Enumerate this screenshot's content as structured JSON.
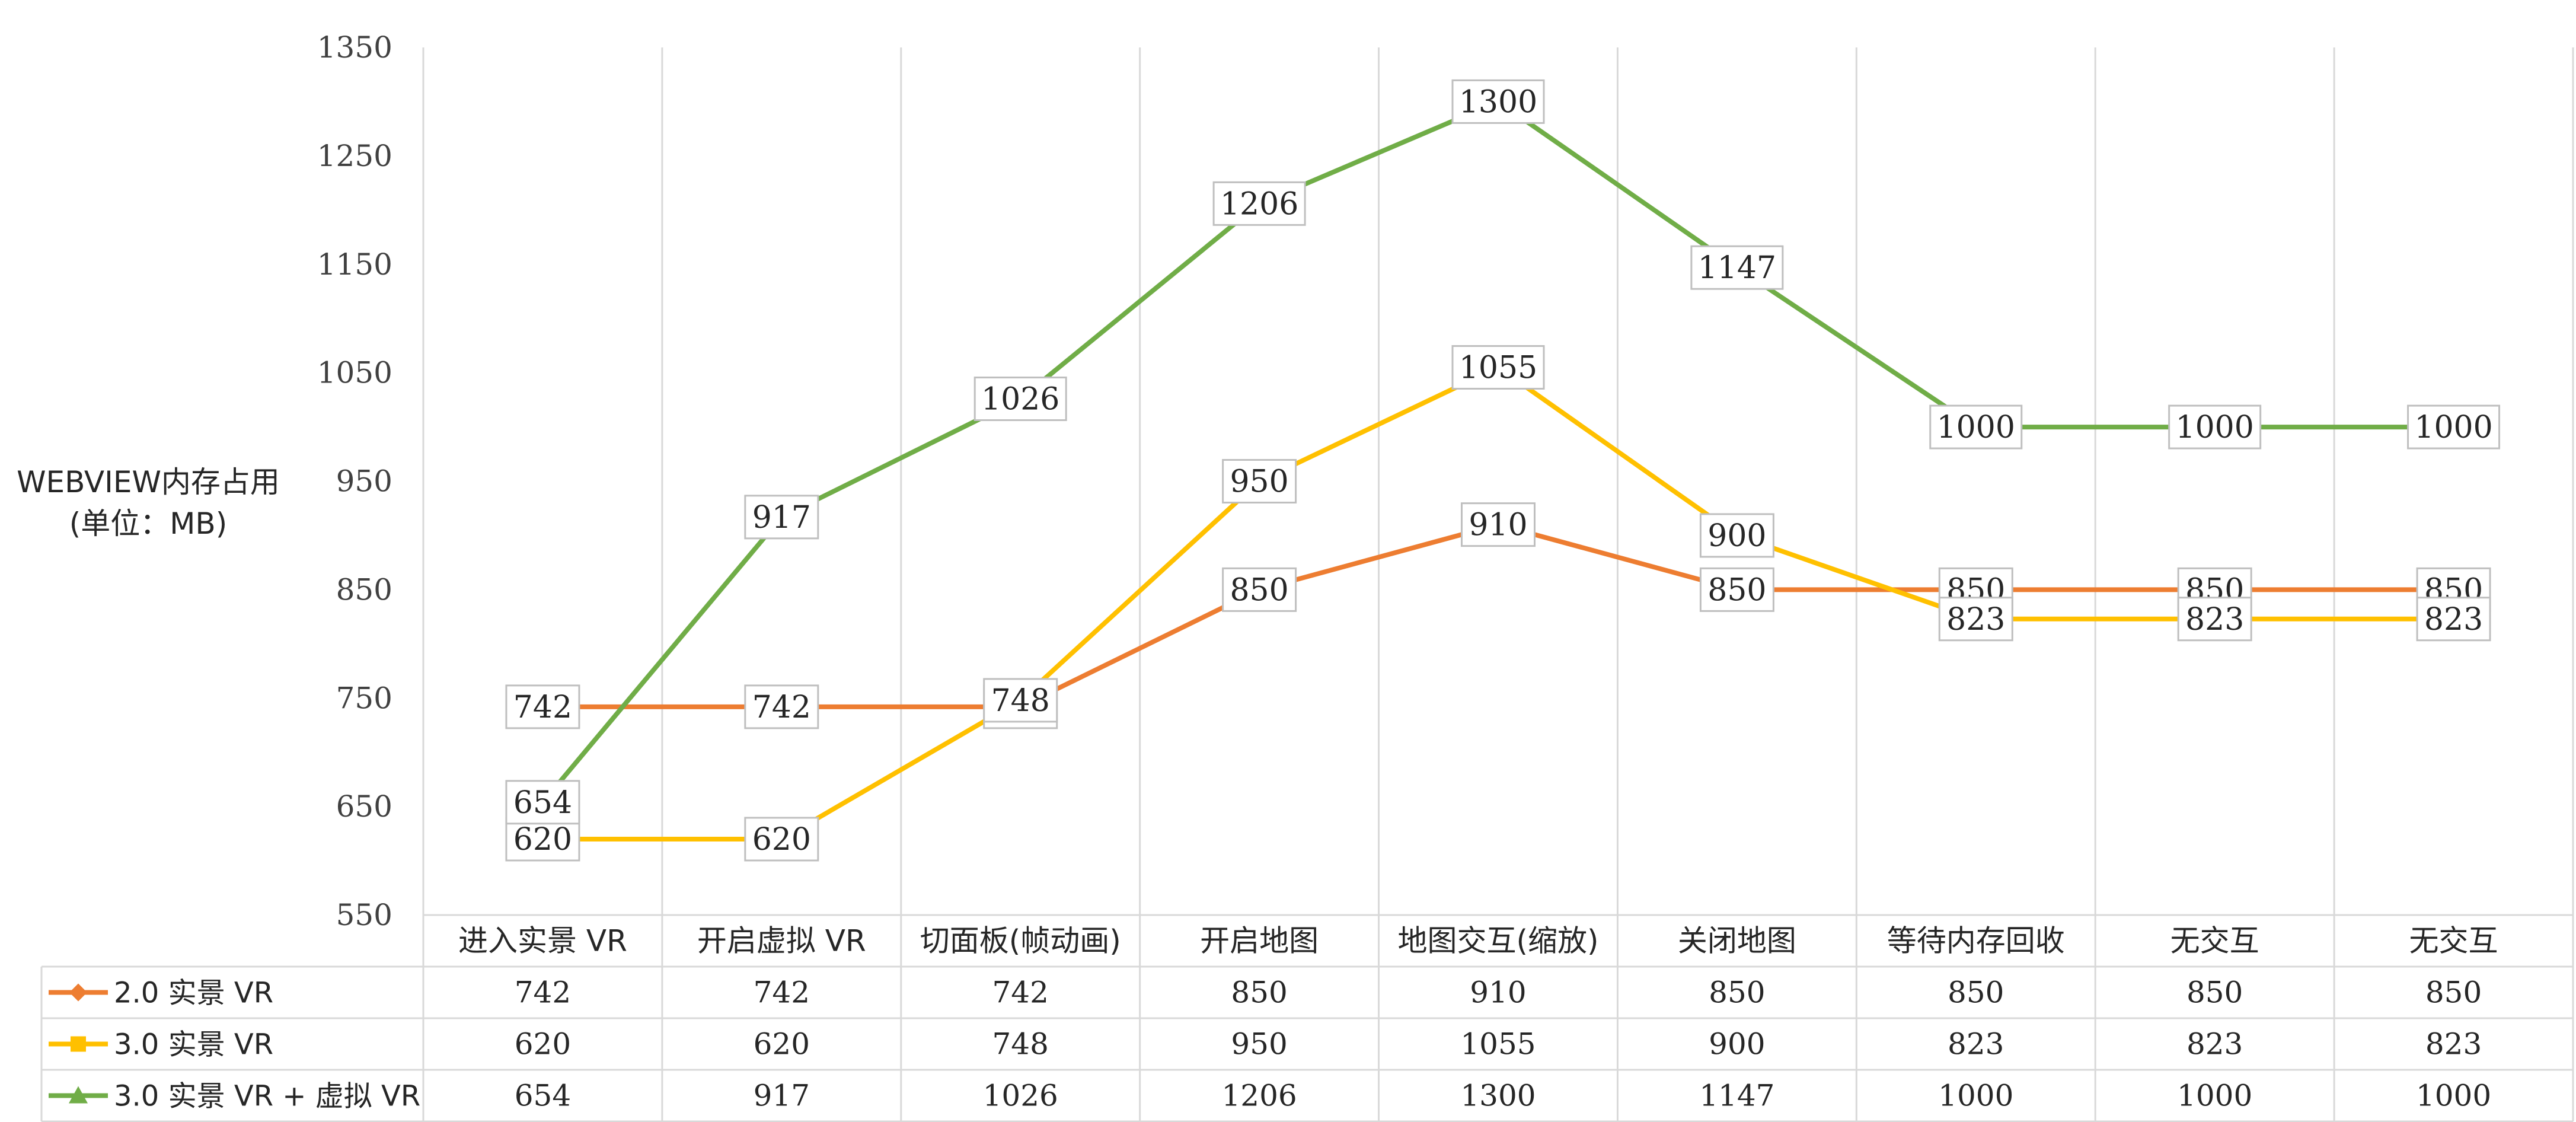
{
  "chart_data": {
    "type": "line",
    "ylabel_lines": [
      "WEBVIEW内存占用",
      "(单位：MB)"
    ],
    "ylim": [
      550,
      1350
    ],
    "yticks": [
      550,
      650,
      750,
      850,
      950,
      1050,
      1150,
      1250,
      1350
    ],
    "grid": "vertical",
    "legend": "data-table",
    "categories": [
      "进入实景 VR",
      "开启虚拟 VR",
      "切面板(帧动画)",
      "开启地图",
      "地图交互(缩放)",
      "关闭地图",
      "等待内存回收",
      "无交互",
      "无交互"
    ],
    "series": [
      {
        "name": "2.0 实景 VR",
        "color": "#ED7D31",
        "marker": "diamond",
        "values": [
          742,
          742,
          742,
          850,
          910,
          850,
          850,
          850,
          850
        ]
      },
      {
        "name": "3.0 实景 VR",
        "color": "#FFC000",
        "marker": "square",
        "values": [
          620,
          620,
          748,
          950,
          1055,
          900,
          823,
          823,
          823
        ]
      },
      {
        "name": "3.0 实景 VR + 虚拟 VR",
        "color": "#70AD47",
        "marker": "triangle",
        "values": [
          654,
          917,
          1026,
          1206,
          1300,
          1147,
          1000,
          1000,
          1000
        ]
      }
    ]
  },
  "style": {
    "grid_color": "#D9D9D9",
    "text_color": "#404040"
  }
}
